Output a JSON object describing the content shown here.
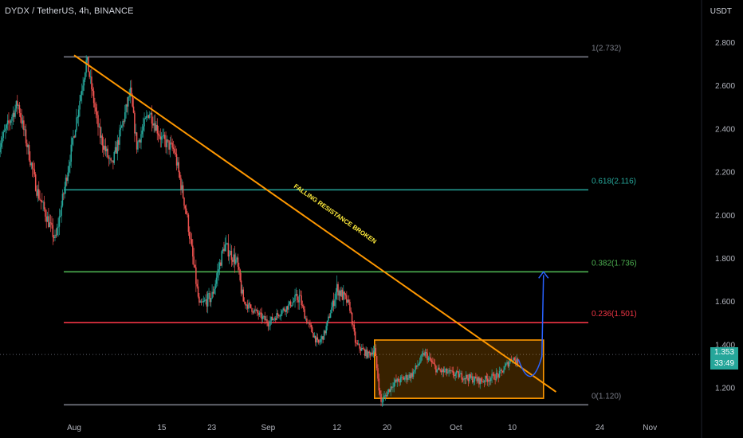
{
  "header": {
    "symbol_title": "DYDX / TetherUS, 4h, BINANCE",
    "currency": "USDT"
  },
  "colors": {
    "background": "#000000",
    "up_candle": "#26a69a",
    "down_candle": "#ef5350",
    "trendline": "#ff9800",
    "fib_gray": "#787b86",
    "fib_teal": "#26a69a",
    "fib_green": "#4caf50",
    "fib_red": "#f23645",
    "projection_arrow": "#2962ff"
  },
  "price_badge": {
    "price": "1.353",
    "countdown": "33:49"
  },
  "chart_data": {
    "type": "candlestick",
    "title": "DYDX / TetherUS, 4h, BINANCE",
    "y_axis": {
      "unit": "USDT",
      "range": [
        1.09,
        2.91
      ],
      "ticks": [
        "2.800",
        "2.600",
        "2.400",
        "2.200",
        "2.000",
        "1.800",
        "1.600",
        "1.400",
        "1.200"
      ]
    },
    "x_axis": {
      "ticks": [
        {
          "label": "Aug",
          "date": "2022-08-01"
        },
        {
          "label": "15",
          "date": "2022-08-15"
        },
        {
          "label": "23",
          "date": "2022-08-23"
        },
        {
          "label": "Sep",
          "date": "2022-09-01"
        },
        {
          "label": "12",
          "date": "2022-09-12"
        },
        {
          "label": "20",
          "date": "2022-09-20"
        },
        {
          "label": "Oct",
          "date": "2022-10-01"
        },
        {
          "label": "10",
          "date": "2022-10-10"
        },
        {
          "label": "24",
          "date": "2022-10-24"
        },
        {
          "label": "Nov",
          "date": "2022-11-01"
        }
      ]
    },
    "price_path": [
      {
        "date": "2022-07-20",
        "price": 2.32
      },
      {
        "date": "2022-07-23",
        "price": 2.52
      },
      {
        "date": "2022-07-26",
        "price": 2.12
      },
      {
        "date": "2022-07-29",
        "price": 1.88
      },
      {
        "date": "2022-08-01",
        "price": 2.38
      },
      {
        "date": "2022-08-03",
        "price": 2.72
      },
      {
        "date": "2022-08-05",
        "price": 2.38
      },
      {
        "date": "2022-08-07",
        "price": 2.22
      },
      {
        "date": "2022-08-10",
        "price": 2.57
      },
      {
        "date": "2022-08-11",
        "price": 2.32
      },
      {
        "date": "2022-08-13",
        "price": 2.48
      },
      {
        "date": "2022-08-15",
        "price": 2.35
      },
      {
        "date": "2022-08-17",
        "price": 2.3
      },
      {
        "date": "2022-08-19",
        "price": 2.0
      },
      {
        "date": "2022-08-21",
        "price": 1.58
      },
      {
        "date": "2022-08-23",
        "price": 1.62
      },
      {
        "date": "2022-08-25",
        "price": 1.86
      },
      {
        "date": "2022-08-27",
        "price": 1.78
      },
      {
        "date": "2022-08-28",
        "price": 1.6
      },
      {
        "date": "2022-09-01",
        "price": 1.5
      },
      {
        "date": "2022-09-03",
        "price": 1.55
      },
      {
        "date": "2022-09-06",
        "price": 1.62
      },
      {
        "date": "2022-09-07",
        "price": 1.52
      },
      {
        "date": "2022-09-09",
        "price": 1.4
      },
      {
        "date": "2022-09-10",
        "price": 1.45
      },
      {
        "date": "2022-09-12",
        "price": 1.66
      },
      {
        "date": "2022-09-14",
        "price": 1.58
      },
      {
        "date": "2022-09-15",
        "price": 1.4
      },
      {
        "date": "2022-09-17",
        "price": 1.35
      },
      {
        "date": "2022-09-18",
        "price": 1.38
      },
      {
        "date": "2022-09-19",
        "price": 1.13
      },
      {
        "date": "2022-09-21",
        "price": 1.22
      },
      {
        "date": "2022-09-24",
        "price": 1.26
      },
      {
        "date": "2022-09-26",
        "price": 1.36
      },
      {
        "date": "2022-09-28",
        "price": 1.28
      },
      {
        "date": "2022-10-01",
        "price": 1.26
      },
      {
        "date": "2022-10-05",
        "price": 1.23
      },
      {
        "date": "2022-10-08",
        "price": 1.26
      },
      {
        "date": "2022-10-10",
        "price": 1.34
      },
      {
        "date": "2022-10-11",
        "price": 1.31
      }
    ],
    "fib_levels": [
      {
        "label": "1(2.732)",
        "ratio": 1,
        "value": 2.732,
        "color": "#787b86"
      },
      {
        "label": "0.618(2.116)",
        "ratio": 0.618,
        "value": 2.116,
        "color": "#26a69a"
      },
      {
        "label": "0.382(1.736)",
        "ratio": 0.382,
        "value": 1.736,
        "color": "#4caf50"
      },
      {
        "label": "0.236(1.501)",
        "ratio": 0.236,
        "value": 1.501,
        "color": "#f23645"
      },
      {
        "label": "0(1.120)",
        "ratio": 0,
        "value": 1.12,
        "color": "#787b86"
      }
    ],
    "trendline": {
      "label": "FALLING RESISTANCE BROKEN",
      "start": {
        "date": "2022-08-01",
        "price": 2.74
      },
      "end": {
        "date": "2022-10-17",
        "price": 1.18
      }
    },
    "consolidation_box": {
      "start_date": "2022-09-18",
      "end_date": "2022-10-15",
      "high": 1.42,
      "low": 1.15
    },
    "projection": {
      "from": {
        "date": "2022-10-11",
        "price": 1.33
      },
      "low": {
        "date": "2022-10-13",
        "price": 1.27
      },
      "target": {
        "date": "2022-10-15",
        "price": 1.736
      }
    },
    "last_price": 1.353
  }
}
